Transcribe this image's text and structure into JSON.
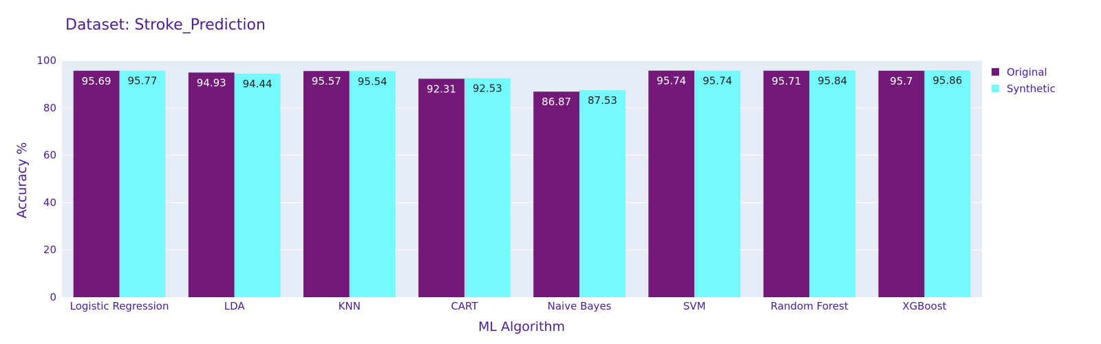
{
  "chart_data": {
    "type": "bar",
    "title": "Dataset: Stroke_Prediction",
    "xlabel": "ML Algorithm",
    "ylabel": "Accuracy %",
    "categories": [
      "Logistic Regression",
      "LDA",
      "KNN",
      "CART",
      "Naive Bayes",
      "SVM",
      "Random Forest",
      "XGBoost"
    ],
    "series": [
      {
        "name": "Original",
        "color": "#731a78",
        "label_color": "#ffffff",
        "values": [
          95.69,
          94.93,
          95.57,
          92.31,
          86.87,
          95.74,
          95.71,
          95.7
        ],
        "labels": [
          "95.69",
          "94.93",
          "95.57",
          "92.31",
          "86.87",
          "95.74",
          "95.71",
          "95.7"
        ]
      },
      {
        "name": "Synthetic",
        "color": "#75fafb",
        "label_color": "#222222",
        "values": [
          95.77,
          94.44,
          95.54,
          92.53,
          87.53,
          95.74,
          95.84,
          95.86
        ],
        "labels": [
          "95.77",
          "94.44",
          "95.54",
          "92.53",
          "87.53",
          "95.74",
          "95.84",
          "95.86"
        ]
      }
    ],
    "ylim": [
      0,
      100
    ],
    "yticks": [
      "0",
      "20",
      "40",
      "60",
      "80",
      "100"
    ],
    "grid": true,
    "legend_position": "top-right",
    "plot_bg": "#e5ecf6"
  }
}
